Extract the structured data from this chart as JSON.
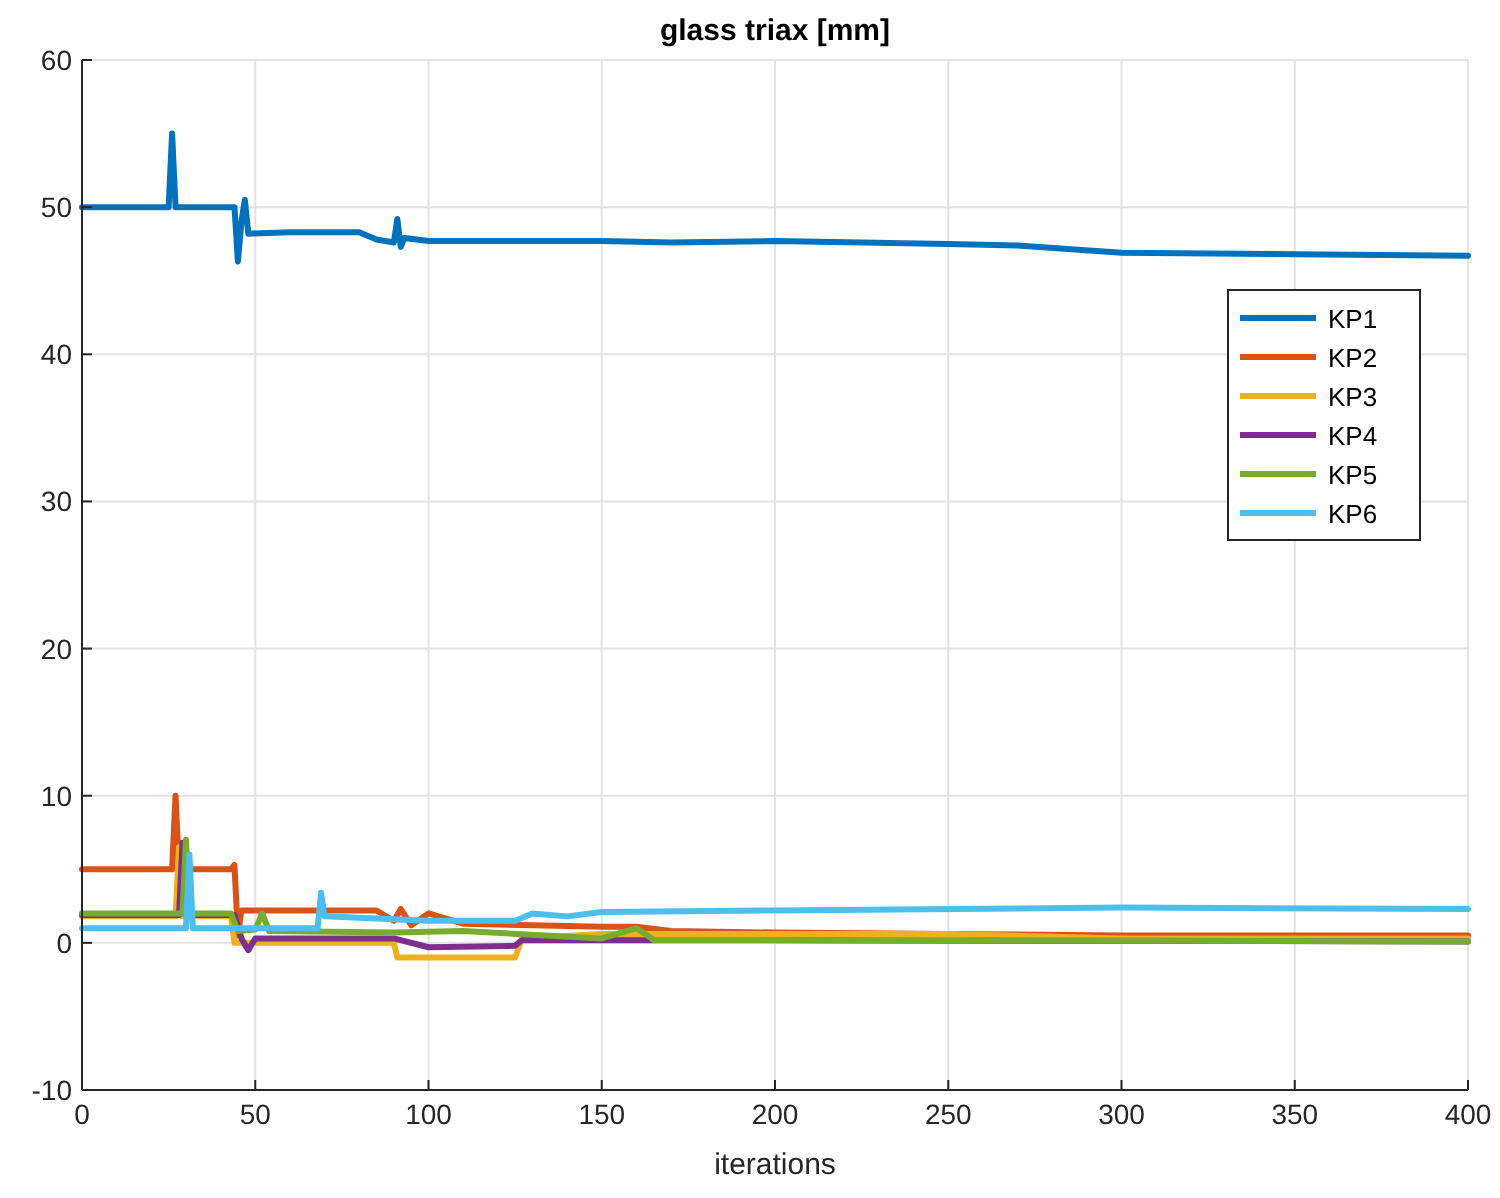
{
  "chart_data": {
    "type": "line",
    "title": "glass triax [mm]",
    "xlabel": "iterations",
    "xlim": [
      0,
      400
    ],
    "xticks": [
      0,
      50,
      100,
      150,
      200,
      250,
      300,
      350,
      400
    ],
    "ylim": [
      -10,
      60
    ],
    "yticks": [
      -10,
      0,
      10,
      20,
      30,
      40,
      50,
      60
    ],
    "grid": true,
    "legend": "right",
    "series": [
      {
        "name": "KP1",
        "color": "#0072bd",
        "x": [
          0,
          25,
          26,
          27,
          44,
          45,
          46,
          47,
          48,
          60,
          80,
          85,
          90,
          91,
          92,
          93,
          100,
          150,
          170,
          200,
          250,
          270,
          300,
          350,
          400
        ],
        "values": [
          50,
          50,
          55,
          50,
          50,
          46.3,
          49,
          50.5,
          48.2,
          48.3,
          48.3,
          47.8,
          47.6,
          49.2,
          47.3,
          47.9,
          47.7,
          47.7,
          47.6,
          47.7,
          47.5,
          47.4,
          46.9,
          46.8,
          46.7
        ]
      },
      {
        "name": "KP2",
        "color": "#d95319",
        "x": [
          0,
          26,
          27,
          28,
          43,
          44,
          45,
          46,
          60,
          85,
          90,
          92,
          95,
          100,
          110,
          130,
          150,
          160,
          170,
          200,
          250,
          300,
          400
        ],
        "values": [
          5,
          5,
          10,
          5,
          5,
          5.3,
          0.5,
          2.2,
          2.2,
          2.2,
          1.5,
          2.3,
          1.2,
          2,
          1.3,
          1.2,
          1.1,
          1.1,
          0.8,
          0.7,
          0.6,
          0.5,
          0.5
        ]
      },
      {
        "name": "KP3",
        "color": "#edb120",
        "x": [
          0,
          27,
          28,
          29,
          43,
          44,
          90,
          91,
          125,
          127,
          150,
          250,
          300,
          400
        ],
        "values": [
          1.8,
          1.8,
          6.5,
          1.8,
          1.8,
          0,
          0,
          -1,
          -1,
          0.3,
          0.6,
          0.6,
          0.3,
          0.3
        ]
      },
      {
        "name": "KP4",
        "color": "#7e2f8e",
        "x": [
          0,
          28,
          29,
          30,
          44,
          46,
          48,
          50,
          90,
          100,
          125,
          127,
          400
        ],
        "values": [
          1.9,
          1.9,
          6.8,
          1.9,
          1.9,
          0.3,
          -0.5,
          0.3,
          0.3,
          -0.3,
          -0.2,
          0.2,
          0.1
        ]
      },
      {
        "name": "KP5",
        "color": "#77ac30",
        "x": [
          0,
          29,
          30,
          31,
          43,
          45,
          50,
          52,
          54,
          90,
          110,
          150,
          160,
          165,
          400
        ],
        "values": [
          2,
          2,
          7,
          2,
          2,
          0.8,
          0.9,
          2,
          0.8,
          0.7,
          0.8,
          0.3,
          1,
          0.2,
          0.1
        ]
      },
      {
        "name": "KP6",
        "color": "#4dbeee",
        "x": [
          0,
          30,
          31,
          32,
          60,
          68,
          69,
          70,
          100,
          125,
          130,
          140,
          150,
          200,
          300,
          400
        ],
        "values": [
          1,
          1,
          6,
          1,
          1,
          1,
          3.4,
          1.8,
          1.5,
          1.5,
          2,
          1.8,
          2.1,
          2.2,
          2.4,
          2.3
        ]
      }
    ]
  }
}
